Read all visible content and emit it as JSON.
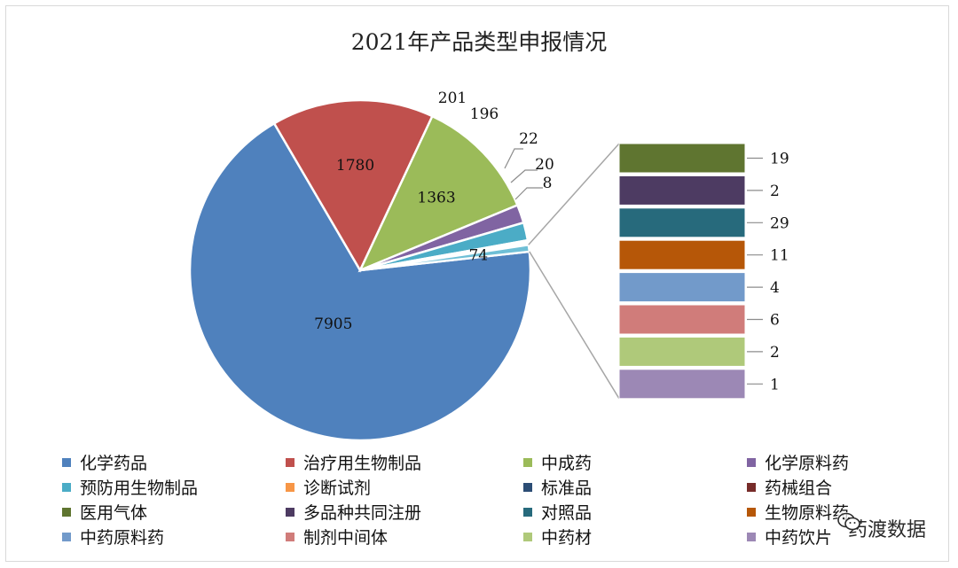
{
  "chart_data": {
    "type": "bar-of-pie",
    "title": "2021年产品类型申报情况",
    "pie": {
      "slices": [
        {
          "name": "化学药品",
          "value": 7905,
          "label": "7905",
          "color": "#4f81bd"
        },
        {
          "name": "治疗用生物制品",
          "value": 1780,
          "label": "1780",
          "color": "#c0504d"
        },
        {
          "name": "中成药",
          "value": 1363,
          "label": "1363",
          "color": "#9bbb59"
        },
        {
          "name": "化学原料药",
          "value": 201,
          "label": "201",
          "color": "#8064a2"
        },
        {
          "name": "预防用生物制品",
          "value": 196,
          "label": "196",
          "color": "#4bacc6"
        },
        {
          "name": "诊断试剂",
          "value": 22,
          "label": "22",
          "color": "#f79646"
        },
        {
          "name": "标准品",
          "value": 20,
          "label": "20",
          "color": "#2c4d75"
        },
        {
          "name": "药械组合",
          "value": 8,
          "label": "8",
          "color": "#772c2a"
        }
      ],
      "other": {
        "label": "74",
        "value": 74,
        "color": "#6fbfd6"
      }
    },
    "bar": {
      "items": [
        {
          "name": "医用气体",
          "value": 19,
          "label": "19",
          "color": "#5f7530"
        },
        {
          "name": "多品种共同注册",
          "value": 2,
          "label": "2",
          "color": "#4d3b62"
        },
        {
          "name": "对照品",
          "value": 29,
          "label": "29",
          "color": "#276a7c"
        },
        {
          "name": "生物原料药",
          "value": 11,
          "label": "11",
          "color": "#b65708"
        },
        {
          "name": "中药原料药",
          "value": 4,
          "label": "4",
          "color": "#729aca"
        },
        {
          "name": "制剂中间体",
          "value": 6,
          "label": "6",
          "color": "#d07c7a"
        },
        {
          "name": "中药材",
          "value": 2,
          "label": "2",
          "color": "#afc97a"
        },
        {
          "name": "中药饮片",
          "value": 1,
          "label": "1",
          "color": "#9c88b5"
        }
      ]
    },
    "legend": [
      {
        "label": "化学药品",
        "color": "#4f81bd"
      },
      {
        "label": "治疗用生物制品",
        "color": "#c0504d"
      },
      {
        "label": "中成药",
        "color": "#9bbb59"
      },
      {
        "label": "化学原料药",
        "color": "#8064a2"
      },
      {
        "label": "预防用生物制品",
        "color": "#4bacc6"
      },
      {
        "label": "诊断试剂",
        "color": "#f79646"
      },
      {
        "label": "标准品",
        "color": "#2c4d75"
      },
      {
        "label": "药械组合",
        "color": "#772c2a"
      },
      {
        "label": "医用气体",
        "color": "#5f7530"
      },
      {
        "label": "多品种共同注册",
        "color": "#4d3b62"
      },
      {
        "label": "对照品",
        "color": "#276a7c"
      },
      {
        "label": "生物原料药",
        "color": "#b65708"
      },
      {
        "label": "中药原料药",
        "color": "#729aca"
      },
      {
        "label": "制剂中间体",
        "color": "#d07c7a"
      },
      {
        "label": "中药材",
        "color": "#afc97a"
      },
      {
        "label": "中药饮片",
        "color": "#9c88b5"
      }
    ]
  },
  "watermark": {
    "text": "药渡数据"
  }
}
